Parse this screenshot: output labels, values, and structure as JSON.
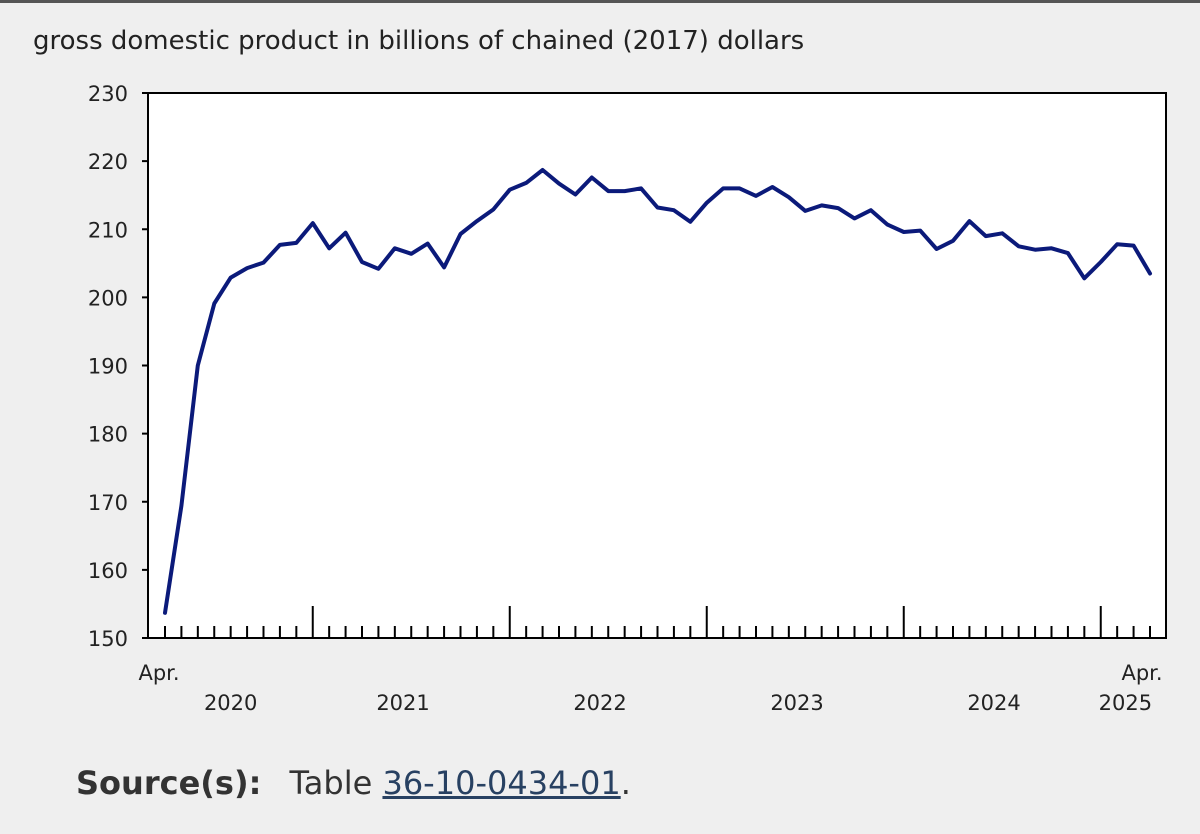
{
  "chart_data": {
    "type": "line",
    "title": "gross domestic product in billions of chained (2017) dollars",
    "ylim": [
      150,
      230
    ],
    "yticks": [
      150,
      160,
      170,
      180,
      190,
      200,
      210,
      220,
      230
    ],
    "start_month_label": "Apr.",
    "end_month_label": "Apr.",
    "year_labels": [
      "2020",
      "2021",
      "2022",
      "2023",
      "2024",
      "2025"
    ],
    "series": [
      {
        "color": "#0b1a7a",
        "x": [
          "2020-04",
          "2020-05",
          "2020-06",
          "2020-07",
          "2020-08",
          "2020-09",
          "2020-10",
          "2020-11",
          "2020-12",
          "2021-01",
          "2021-02",
          "2021-03",
          "2021-04",
          "2021-05",
          "2021-06",
          "2021-07",
          "2021-08",
          "2021-09",
          "2021-10",
          "2021-11",
          "2021-12",
          "2022-01",
          "2022-02",
          "2022-03",
          "2022-04",
          "2022-05",
          "2022-06",
          "2022-07",
          "2022-08",
          "2022-09",
          "2022-10",
          "2022-11",
          "2022-12",
          "2023-01",
          "2023-02",
          "2023-03",
          "2023-04",
          "2023-05",
          "2023-06",
          "2023-07",
          "2023-08",
          "2023-09",
          "2023-10",
          "2023-11",
          "2023-12",
          "2024-01",
          "2024-02",
          "2024-03",
          "2024-04",
          "2024-05",
          "2024-06",
          "2024-07",
          "2024-08",
          "2024-09",
          "2024-10",
          "2024-11",
          "2024-12",
          "2025-01",
          "2025-02",
          "2025-03",
          "2025-04"
        ],
        "values": [
          153.7,
          169.4,
          190.0,
          199.1,
          202.9,
          204.3,
          205.1,
          207.7,
          208.0,
          210.9,
          207.2,
          209.5,
          205.2,
          204.2,
          207.2,
          206.4,
          207.9,
          204.4,
          209.3,
          211.2,
          212.9,
          215.8,
          216.8,
          218.7,
          216.7,
          215.1,
          217.6,
          215.6,
          215.6,
          216.0,
          213.2,
          212.8,
          211.1,
          213.9,
          216.0,
          216.0,
          214.9,
          216.2,
          214.7,
          212.7,
          213.5,
          213.1,
          211.6,
          212.8,
          210.7,
          209.6,
          209.8,
          207.1,
          208.3,
          211.2,
          209.0,
          209.4,
          207.5,
          207.0,
          207.2,
          206.5,
          202.8,
          205.2,
          207.8,
          207.6,
          203.5
        ]
      }
    ]
  },
  "source": {
    "label": "Source(s):",
    "prefix": "Table",
    "link_text": "36-10-0434-01",
    "suffix": "."
  }
}
